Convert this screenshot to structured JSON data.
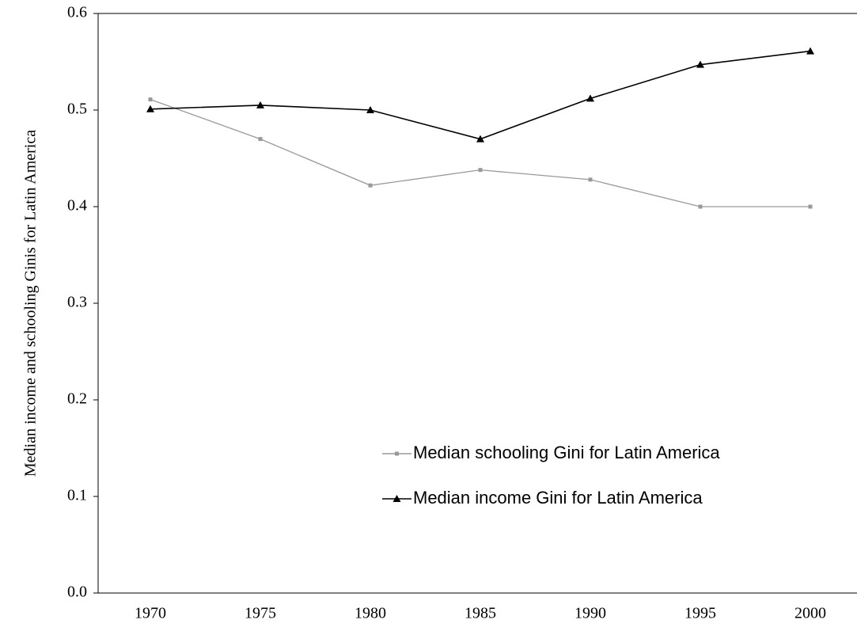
{
  "chart_data": {
    "type": "line",
    "y_label": "Median income and schooling Ginis for Latin America",
    "categories": [
      "1970",
      "1975",
      "1980",
      "1985",
      "1990",
      "1995",
      "2000"
    ],
    "series": [
      {
        "name": "Median schooling Gini for Latin America",
        "color": "#999999",
        "marker": "square",
        "values": [
          0.511,
          0.47,
          0.422,
          0.438,
          0.428,
          0.4,
          0.4
        ]
      },
      {
        "name": "Median income Gini for Latin America",
        "color": "#000000",
        "marker": "triangle",
        "values": [
          0.501,
          0.505,
          0.5,
          0.47,
          0.512,
          0.547,
          0.561
        ]
      }
    ],
    "ylim": [
      0,
      0.6
    ],
    "yticks": [
      {
        "value": 0,
        "label": "0.0"
      },
      0.1,
      0.2,
      0.3,
      0.4,
      0.5,
      0.6
    ],
    "grid": false,
    "legend": "lower right"
  }
}
